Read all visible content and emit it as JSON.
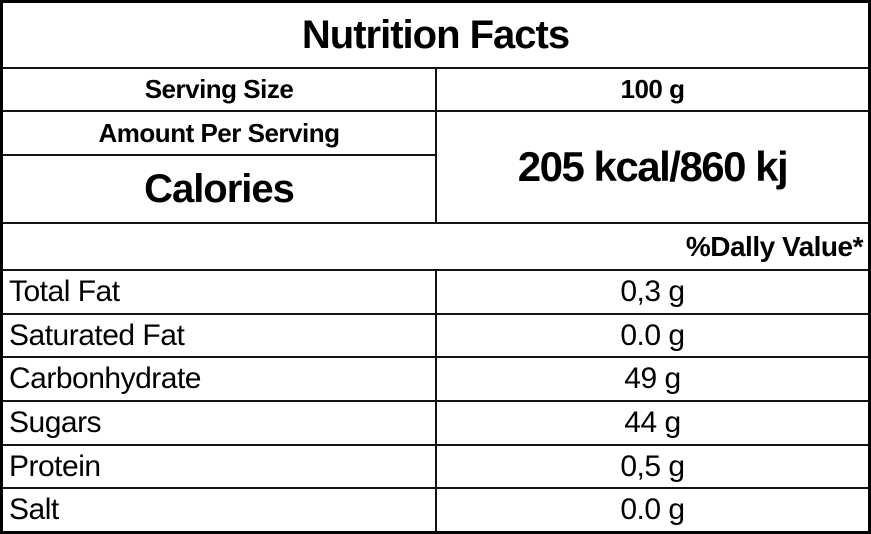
{
  "colors": {
    "border": "#000000",
    "background": "#ffffff",
    "text": "#000000"
  },
  "table": {
    "title": "Nutrition Facts",
    "serving": {
      "label": "Serving Size",
      "value": "100 g"
    },
    "amount_header": "Amount Per Serving",
    "calories": {
      "label": "Calories",
      "value": "205 kcal/860 kj"
    },
    "daily_value_header": "%Dally Value*",
    "rows": [
      {
        "label": "Total Fat",
        "value": "0,3 g"
      },
      {
        "label": "Saturated Fat",
        "value": "0.0 g"
      },
      {
        "label": "Carbonhydrate",
        "value": "49 g"
      },
      {
        "label": "Sugars",
        "value": "44 g"
      },
      {
        "label": "Protein",
        "value": "0,5 g"
      },
      {
        "label": "Salt",
        "value": "0.0 g"
      }
    ]
  }
}
